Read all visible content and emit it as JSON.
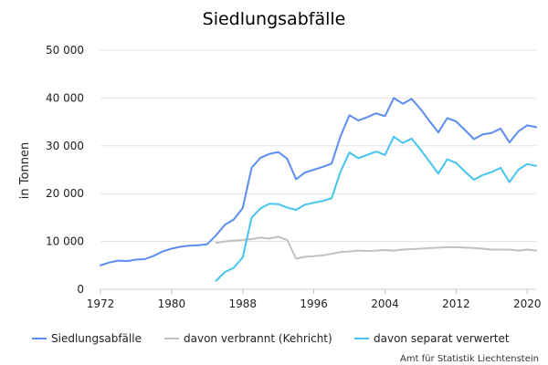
{
  "chart_data": {
    "type": "line",
    "title": "Siedlungsabfälle",
    "ylabel": "in Tonnen",
    "xlabel": "",
    "xlim": [
      1972,
      2021
    ],
    "ylim": [
      0,
      50000
    ],
    "x_ticks": [
      1972,
      1980,
      1988,
      1996,
      2004,
      2012,
      2020
    ],
    "y_ticks": [
      0,
      10000,
      20000,
      30000,
      40000,
      50000
    ],
    "y_tick_labels": [
      "0",
      "10 000",
      "20 000",
      "30 000",
      "40 000",
      "50 000"
    ],
    "grid": "horizontal",
    "legend_position": "bottom",
    "source": "Amt für Statistik Liechtenstein",
    "series": [
      {
        "name": "Siedlungsabfälle",
        "color": "#5b8def",
        "points": [
          [
            1972,
            5000
          ],
          [
            1973,
            5600
          ],
          [
            1974,
            6000
          ],
          [
            1975,
            5900
          ],
          [
            1976,
            6200
          ],
          [
            1977,
            6300
          ],
          [
            1978,
            7000
          ],
          [
            1979,
            7900
          ],
          [
            1980,
            8500
          ],
          [
            1981,
            8900
          ],
          [
            1982,
            9100
          ],
          [
            1983,
            9200
          ],
          [
            1984,
            9400
          ],
          [
            1985,
            11300
          ],
          [
            1986,
            13500
          ],
          [
            1987,
            14600
          ],
          [
            1988,
            17000
          ],
          [
            1989,
            25400
          ],
          [
            1990,
            27500
          ],
          [
            1991,
            28300
          ],
          [
            1992,
            28700
          ],
          [
            1993,
            27300
          ],
          [
            1994,
            23000
          ],
          [
            1995,
            24400
          ],
          [
            1996,
            25000
          ],
          [
            1997,
            25600
          ],
          [
            1998,
            26300
          ],
          [
            1999,
            32000
          ],
          [
            2000,
            36400
          ],
          [
            2001,
            35300
          ],
          [
            2002,
            36000
          ],
          [
            2003,
            36800
          ],
          [
            2004,
            36200
          ],
          [
            2005,
            40000
          ],
          [
            2006,
            38800
          ],
          [
            2007,
            39800
          ],
          [
            2008,
            37700
          ],
          [
            2009,
            35200
          ],
          [
            2010,
            32800
          ],
          [
            2011,
            35800
          ],
          [
            2012,
            35100
          ],
          [
            2013,
            33300
          ],
          [
            2014,
            31400
          ],
          [
            2015,
            32400
          ],
          [
            2016,
            32700
          ],
          [
            2017,
            33600
          ],
          [
            2018,
            30700
          ],
          [
            2019,
            33000
          ],
          [
            2020,
            34300
          ],
          [
            2021,
            33900
          ]
        ]
      },
      {
        "name": "davon verbrannt (Kehricht)",
        "color": "#c0c0c0",
        "points": [
          [
            1985,
            9700
          ],
          [
            1986,
            10000
          ],
          [
            1987,
            10200
          ],
          [
            1988,
            10300
          ],
          [
            1989,
            10500
          ],
          [
            1990,
            10800
          ],
          [
            1991,
            10600
          ],
          [
            1992,
            11000
          ],
          [
            1993,
            10300
          ],
          [
            1994,
            6400
          ],
          [
            1995,
            6800
          ],
          [
            1996,
            6900
          ],
          [
            1997,
            7100
          ],
          [
            1998,
            7400
          ],
          [
            1999,
            7800
          ],
          [
            2000,
            7900
          ],
          [
            2001,
            8100
          ],
          [
            2002,
            8000
          ],
          [
            2003,
            8100
          ],
          [
            2004,
            8200
          ],
          [
            2005,
            8100
          ],
          [
            2006,
            8300
          ],
          [
            2007,
            8400
          ],
          [
            2008,
            8500
          ],
          [
            2009,
            8600
          ],
          [
            2010,
            8700
          ],
          [
            2011,
            8800
          ],
          [
            2012,
            8800
          ],
          [
            2013,
            8700
          ],
          [
            2014,
            8600
          ],
          [
            2015,
            8500
          ],
          [
            2016,
            8300
          ],
          [
            2017,
            8300
          ],
          [
            2018,
            8300
          ],
          [
            2019,
            8100
          ],
          [
            2020,
            8300
          ],
          [
            2021,
            8100
          ]
        ]
      },
      {
        "name": "davon separat verwertet",
        "color": "#46c4ef",
        "points": [
          [
            1985,
            1800
          ],
          [
            1986,
            3600
          ],
          [
            1987,
            4500
          ],
          [
            1988,
            6700
          ],
          [
            1989,
            15000
          ],
          [
            1990,
            16900
          ],
          [
            1991,
            17900
          ],
          [
            1992,
            17800
          ],
          [
            1993,
            17100
          ],
          [
            1994,
            16600
          ],
          [
            1995,
            17700
          ],
          [
            1996,
            18100
          ],
          [
            1997,
            18500
          ],
          [
            1998,
            19000
          ],
          [
            1999,
            24600
          ],
          [
            2000,
            28600
          ],
          [
            2001,
            27400
          ],
          [
            2002,
            28100
          ],
          [
            2003,
            28800
          ],
          [
            2004,
            28100
          ],
          [
            2005,
            31900
          ],
          [
            2006,
            30600
          ],
          [
            2007,
            31500
          ],
          [
            2008,
            29200
          ],
          [
            2009,
            26700
          ],
          [
            2010,
            24200
          ],
          [
            2011,
            27200
          ],
          [
            2012,
            26400
          ],
          [
            2013,
            24600
          ],
          [
            2014,
            22900
          ],
          [
            2015,
            23900
          ],
          [
            2016,
            24500
          ],
          [
            2017,
            25400
          ],
          [
            2018,
            22400
          ],
          [
            2019,
            25000
          ],
          [
            2020,
            26200
          ],
          [
            2021,
            25800
          ]
        ]
      }
    ]
  }
}
